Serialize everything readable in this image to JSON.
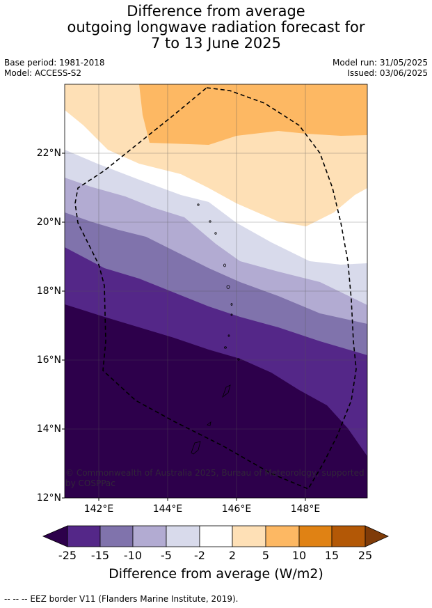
{
  "title": {
    "line1": "Difference from average",
    "line2": "outgoing longwave radiation forecast for",
    "line3": "7 to 13 June 2025"
  },
  "meta": {
    "base_period": "Base period: 1981-2018",
    "model": "Model: ACCESS-S2",
    "model_run": "Model run: 31/05/2025",
    "issued": "Issued: 03/06/2025"
  },
  "axes": {
    "lat_labels": [
      "22°N",
      "20°N",
      "18°N",
      "16°N",
      "14°N",
      "12°N"
    ],
    "lat_values": [
      22,
      20,
      18,
      16,
      14,
      12
    ],
    "lon_labels": [
      "142°E",
      "144°E",
      "146°E",
      "148°E"
    ],
    "lon_values": [
      142,
      144,
      146,
      148
    ],
    "lat_range": [
      12,
      23.9
    ],
    "lon_range": [
      141,
      149.8
    ]
  },
  "copyright": "© Commonwealth of Australia 2025, Bureau of Meteorology, supported by COSPPac",
  "colorbar": {
    "title": "Difference from average (W/m2)",
    "ticks": [
      "-25",
      "-15",
      "-10",
      "-5",
      "-2",
      "2",
      "5",
      "10",
      "15",
      "25"
    ],
    "colors": [
      "#2d004b",
      "#542788",
      "#8073ac",
      "#b2abd2",
      "#d8daeb",
      "#ffffff",
      "#fee0b6",
      "#fdb863",
      "#e08214",
      "#b35806",
      "#7f3b08"
    ]
  },
  "footer": "--  --  -- EEZ border V11 (Flanders Marine Institute, 2019)."
}
